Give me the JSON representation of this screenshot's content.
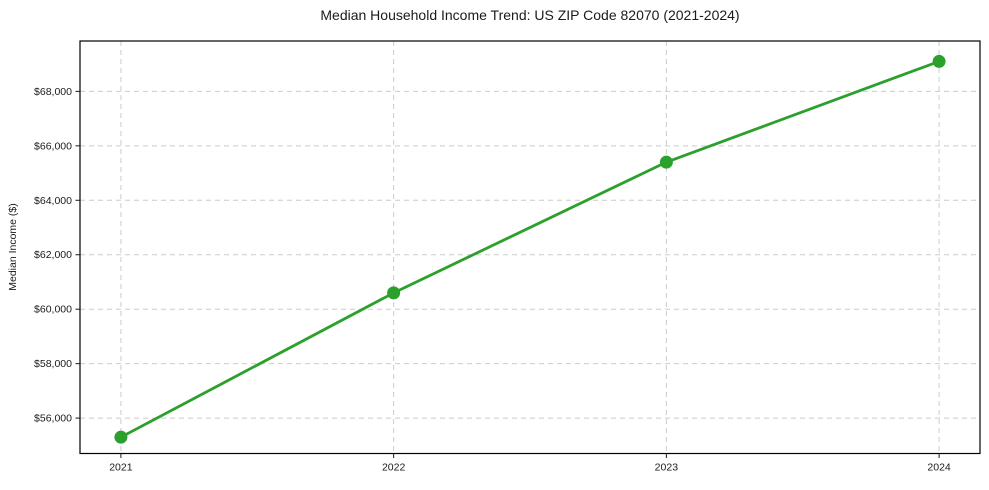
{
  "chart_data": {
    "type": "line",
    "title": "Median Household Income Trend: US ZIP Code 82070 (2021-2024)",
    "xlabel": "",
    "ylabel": "Median Income ($)",
    "x": [
      2021,
      2022,
      2023,
      2024
    ],
    "x_tick_labels": [
      "2021",
      "2022",
      "2023",
      "2024"
    ],
    "series": [
      {
        "name": "Median Household Income",
        "values": [
          55300,
          60600,
          65400,
          69100
        ]
      }
    ],
    "y_ticks": [
      56000,
      58000,
      60000,
      62000,
      64000,
      66000,
      68000
    ],
    "y_tick_labels": [
      "$56,000",
      "$58,000",
      "$60,000",
      "$62,000",
      "$64,000",
      "$66,000",
      "$68,000"
    ],
    "xlim": [
      2020.85,
      2024.15
    ],
    "ylim": [
      54700,
      69850
    ],
    "grid": true,
    "legend": false,
    "line_color": "#2ca02c",
    "marker": "circle",
    "grid_color": "#cbcbcb",
    "spine_color": "#000000",
    "text_color": "#1a1a1a",
    "background": "#ffffff"
  }
}
